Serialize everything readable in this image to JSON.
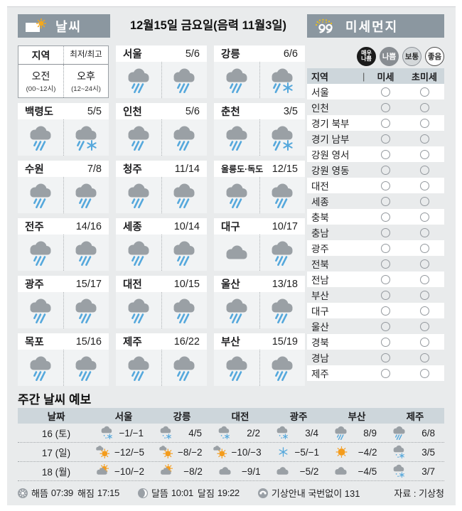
{
  "colors": {
    "panel_bg": "#e9ebec",
    "header_bar": "#8b97a0",
    "table_header": "#cdd6db",
    "cloud": "#9aa0a5",
    "rain": "#55a8dc",
    "sun": "#f49c1c",
    "dot_yellow": "#f4c20d"
  },
  "header": {
    "weather_title": "날씨",
    "date": "12월15일 금요일(음력 11월3일)",
    "dust_title": "미세먼지"
  },
  "weather": {
    "legend": {
      "region_label": "지역",
      "minmax_label": "최저/최고",
      "am_label": "오전",
      "am_sub": "(00~12시)",
      "pm_label": "오후",
      "pm_sub": "(12~24시)"
    },
    "cities": [
      {
        "name": "서울",
        "temp": "5/6",
        "am": "rain",
        "pm": "rain"
      },
      {
        "name": "강릉",
        "temp": "6/6",
        "am": "rain",
        "pm": "rain-snow"
      },
      {
        "name": "백령도",
        "temp": "5/5",
        "am": "rain",
        "pm": "rain-snow"
      },
      {
        "name": "인천",
        "temp": "5/6",
        "am": "rain",
        "pm": "rain"
      },
      {
        "name": "춘천",
        "temp": "3/5",
        "am": "rain",
        "pm": "rain-snow"
      },
      {
        "name": "수원",
        "temp": "7/8",
        "am": "rain",
        "pm": "rain"
      },
      {
        "name": "청주",
        "temp": "11/14",
        "am": "rain",
        "pm": "rain"
      },
      {
        "name": "울릉도·독도",
        "temp": "12/15",
        "am": "rain",
        "pm": "rain"
      },
      {
        "name": "전주",
        "temp": "14/16",
        "am": "rain",
        "pm": "rain"
      },
      {
        "name": "세종",
        "temp": "10/14",
        "am": "rain",
        "pm": "rain"
      },
      {
        "name": "대구",
        "temp": "10/17",
        "am": "cloud",
        "pm": "rain"
      },
      {
        "name": "광주",
        "temp": "15/17",
        "am": "rain",
        "pm": "rain"
      },
      {
        "name": "대전",
        "temp": "10/15",
        "am": "rain",
        "pm": "rain"
      },
      {
        "name": "울산",
        "temp": "13/18",
        "am": "rain",
        "pm": "rain"
      },
      {
        "name": "목포",
        "temp": "15/16",
        "am": "rain",
        "pm": "rain"
      },
      {
        "name": "제주",
        "temp": "16/22",
        "am": "rain",
        "pm": "rain"
      },
      {
        "name": "부산",
        "temp": "15/19",
        "am": "rain",
        "pm": "rain"
      }
    ]
  },
  "dust": {
    "legend": [
      {
        "label": "매우\n나쁨",
        "bg": "#1b1b1b",
        "fg": "#ffffff",
        "border": "#1b1b1b"
      },
      {
        "label": "나쁨",
        "bg": "#888d92",
        "fg": "#ffffff",
        "border": "#888d92"
      },
      {
        "label": "보통",
        "bg": "#d4d8da",
        "fg": "#2a2a2a",
        "border": "#8d9298"
      },
      {
        "label": "좋음",
        "bg": "#ffffff",
        "fg": "#2a2a2a",
        "border": "#4a4a4a"
      }
    ],
    "columns": {
      "region": "지역",
      "divider": "|",
      "fine": "미세",
      "ultrafine": "초미세"
    },
    "regions": [
      {
        "name": "서울",
        "fine": "empty-circle",
        "ultrafine": "empty-circle"
      },
      {
        "name": "인천",
        "fine": "empty-circle",
        "ultrafine": "empty-circle"
      },
      {
        "name": "경기 북부",
        "fine": "empty-circle",
        "ultrafine": "empty-circle"
      },
      {
        "name": "경기 남부",
        "fine": "empty-circle",
        "ultrafine": "empty-circle"
      },
      {
        "name": "강원 영서",
        "fine": "empty-circle",
        "ultrafine": "empty-circle"
      },
      {
        "name": "강원 영동",
        "fine": "empty-circle",
        "ultrafine": "empty-circle"
      },
      {
        "name": "대전",
        "fine": "empty-circle",
        "ultrafine": "empty-circle"
      },
      {
        "name": "세종",
        "fine": "empty-circle",
        "ultrafine": "empty-circle"
      },
      {
        "name": "충북",
        "fine": "empty-circle",
        "ultrafine": "empty-circle"
      },
      {
        "name": "충남",
        "fine": "empty-circle",
        "ultrafine": "empty-circle"
      },
      {
        "name": "광주",
        "fine": "empty-circle",
        "ultrafine": "empty-circle"
      },
      {
        "name": "전북",
        "fine": "empty-circle",
        "ultrafine": "empty-circle"
      },
      {
        "name": "전남",
        "fine": "empty-circle",
        "ultrafine": "empty-circle"
      },
      {
        "name": "부산",
        "fine": "empty-circle",
        "ultrafine": "empty-circle"
      },
      {
        "name": "대구",
        "fine": "empty-circle",
        "ultrafine": "empty-circle"
      },
      {
        "name": "울산",
        "fine": "empty-circle",
        "ultrafine": "empty-circle"
      },
      {
        "name": "경북",
        "fine": "empty-circle",
        "ultrafine": "empty-circle"
      },
      {
        "name": "경남",
        "fine": "empty-circle",
        "ultrafine": "empty-circle"
      },
      {
        "name": "제주",
        "fine": "empty-circle",
        "ultrafine": "empty-circle"
      }
    ]
  },
  "weekly": {
    "title": "주간 날씨 예보",
    "columns": [
      "날짜",
      "서울",
      "강릉",
      "대전",
      "광주",
      "부산",
      "제주"
    ],
    "rows": [
      {
        "date": "16 (토)",
        "cells": [
          {
            "icon": "cloud-snow",
            "temp": "−1/−1"
          },
          {
            "icon": "cloud-snow",
            "temp": "4/5"
          },
          {
            "icon": "cloud-snow",
            "temp": "2/2"
          },
          {
            "icon": "cloud-snow",
            "temp": "3/4"
          },
          {
            "icon": "rain",
            "temp": "8/9"
          },
          {
            "icon": "rain",
            "temp": "6/8"
          }
        ]
      },
      {
        "date": "17 (일)",
        "cells": [
          {
            "icon": "sun-cloud",
            "temp": "−12/−5"
          },
          {
            "icon": "sun-cloud",
            "temp": "−8/−2"
          },
          {
            "icon": "sun-cloud",
            "temp": "−10/−3"
          },
          {
            "icon": "snowflake",
            "temp": "−5/−1"
          },
          {
            "icon": "sun",
            "temp": "−4/2"
          },
          {
            "icon": "cloud-snow",
            "temp": "3/5"
          }
        ]
      },
      {
        "date": "18 (월)",
        "cells": [
          {
            "icon": "cloud-sun",
            "temp": "−10/−2"
          },
          {
            "icon": "cloud-sun",
            "temp": "−8/2"
          },
          {
            "icon": "cloud",
            "temp": "−9/1"
          },
          {
            "icon": "cloud",
            "temp": "−5/2"
          },
          {
            "icon": "cloud",
            "temp": "−4/5"
          },
          {
            "icon": "cloud-snow",
            "temp": "3/7"
          }
        ]
      }
    ]
  },
  "footer": {
    "sunrise_label": "해뜸",
    "sunrise_time": "07:39",
    "sunset_label": "해짐",
    "sunset_time": "17:15",
    "moonrise_label": "달뜸",
    "moonrise_time": "10:01",
    "moonset_label": "달짐",
    "moonset_time": "19:22",
    "info": "기상안내 국번없이 131",
    "source": "자료 : 기상청"
  }
}
